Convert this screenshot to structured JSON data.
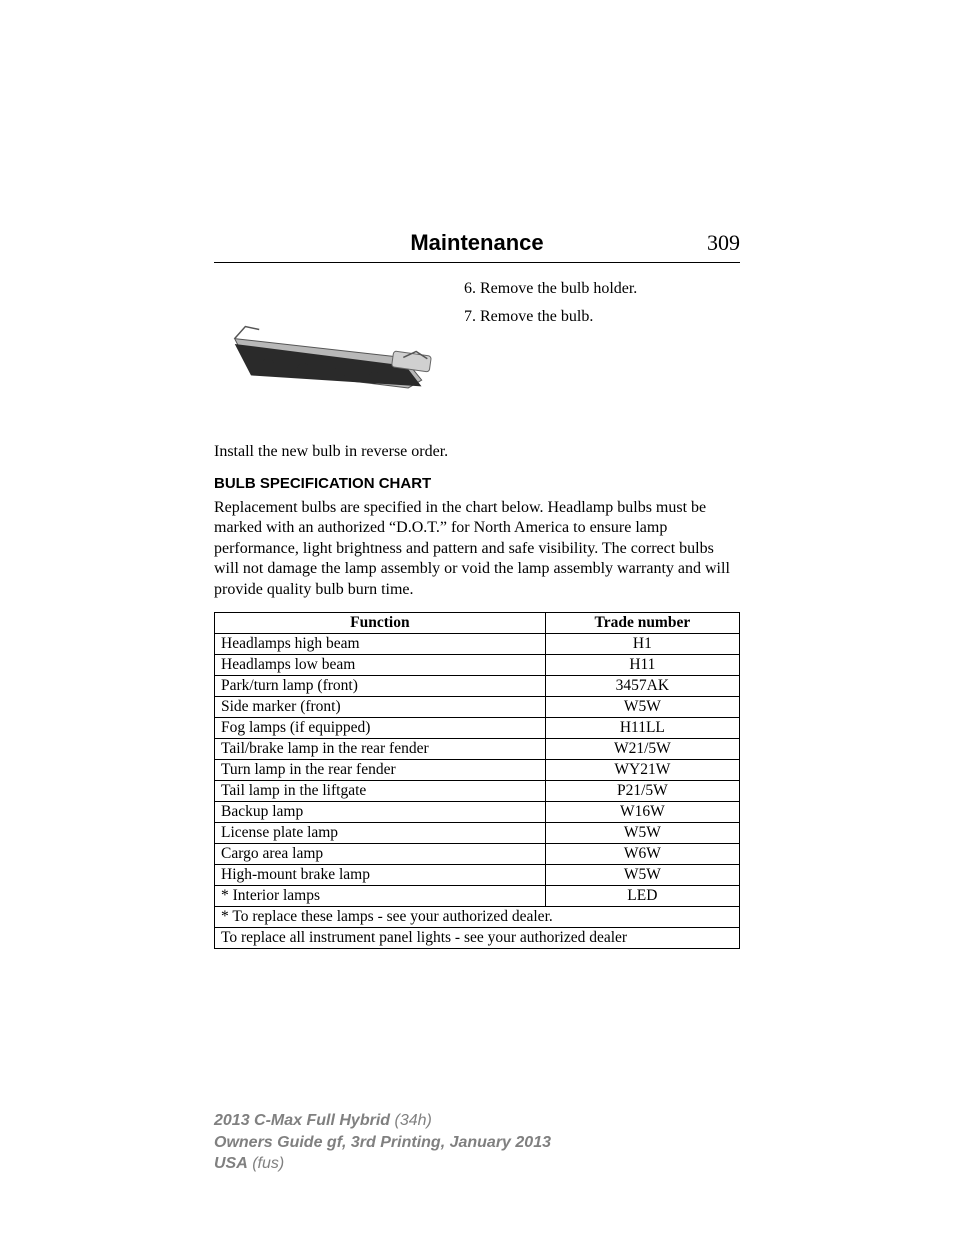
{
  "header": {
    "section_title": "Maintenance",
    "page_number": "309"
  },
  "steps": {
    "step6": "6. Remove the bulb holder.",
    "step7": "7. Remove the bulb."
  },
  "diagram": {
    "alt": "bulb-holder-removal-illustration",
    "colors": {
      "light": "#c0c0c0",
      "dark": "#303030",
      "mid": "#888888"
    }
  },
  "install_line": "Install the new bulb in reverse order.",
  "chart_heading": "BULB SPECIFICATION CHART",
  "intro_paragraph": "Replacement bulbs are specified in the chart below. Headlamp bulbs must be marked with an authorized “D.O.T.” for North America to ensure lamp performance, light brightness and pattern and safe visibility. The correct bulbs will not damage the lamp assembly or void the lamp assembly warranty and will provide quality bulb burn time.",
  "table": {
    "columns": {
      "function": "Function",
      "trade": "Trade number"
    },
    "col_widths": {
      "function_pct": 63,
      "trade_pct": 37
    },
    "rows": [
      {
        "function": "Headlamps high beam",
        "trade": "H1"
      },
      {
        "function": "Headlamps low beam",
        "trade": "H11"
      },
      {
        "function": "Park/turn lamp (front)",
        "trade": "3457AK"
      },
      {
        "function": "Side marker (front)",
        "trade": "W5W"
      },
      {
        "function": "Fog lamps (if equipped)",
        "trade": "H11LL"
      },
      {
        "function": "Tail/brake lamp in the rear fender",
        "trade": "W21/5W"
      },
      {
        "function": "Turn lamp in the rear fender",
        "trade": "WY21W"
      },
      {
        "function": "Tail lamp in the liftgate",
        "trade": "P21/5W"
      },
      {
        "function": "Backup lamp",
        "trade": "W16W"
      },
      {
        "function": "License plate lamp",
        "trade": "W5W"
      },
      {
        "function": "Cargo area lamp",
        "trade": "W6W"
      },
      {
        "function": "High-mount brake lamp",
        "trade": "W5W"
      },
      {
        "function": "* Interior lamps",
        "trade": "LED"
      }
    ],
    "footnotes": [
      "* To replace these lamps - see your authorized dealer.",
      "To replace all instrument panel lights - see your authorized dealer"
    ]
  },
  "footer": {
    "l1_bold": "2013 C-Max Full Hybrid",
    "l1_rest": " (34h)",
    "l2": "Owners Guide gf, 3rd Printing, January 2013",
    "l3_bold": "USA",
    "l3_rest": " (fus)"
  }
}
